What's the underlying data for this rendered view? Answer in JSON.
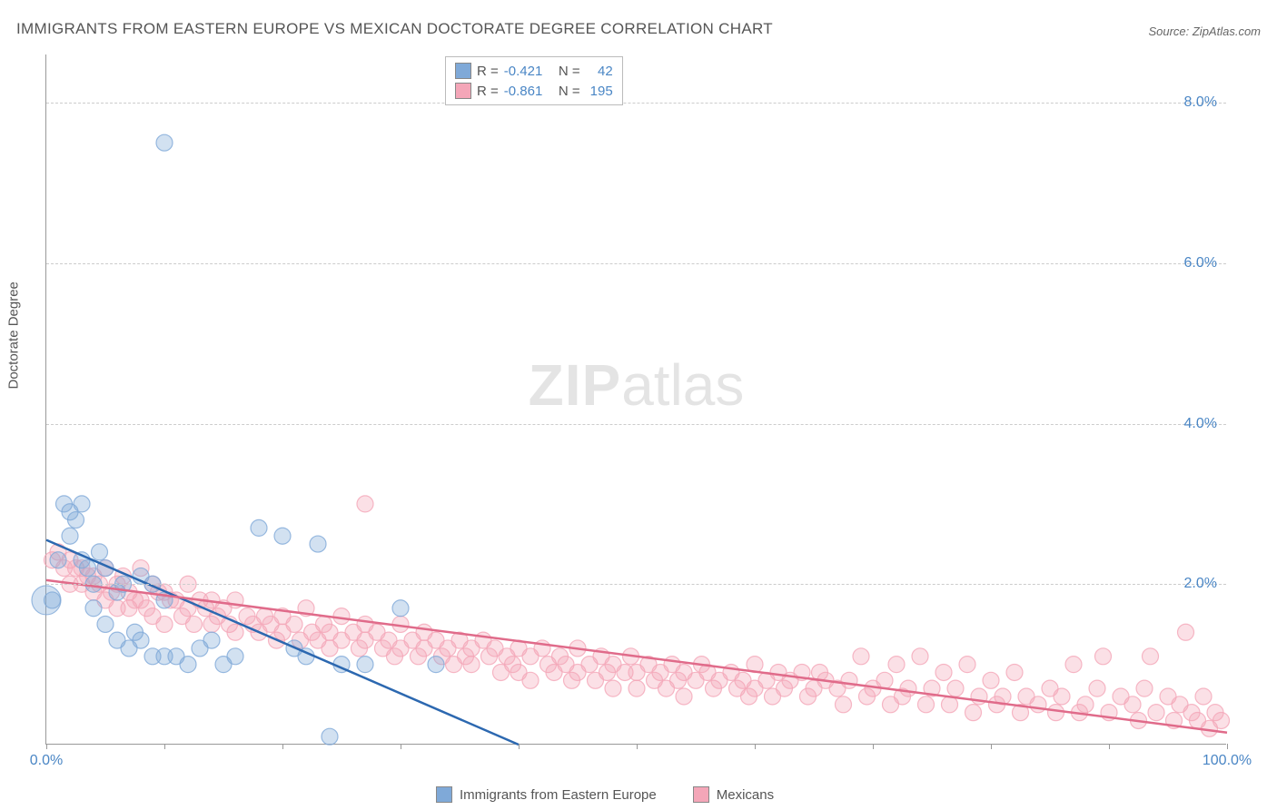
{
  "title": "IMMIGRANTS FROM EASTERN EUROPE VS MEXICAN DOCTORATE DEGREE CORRELATION CHART",
  "source": "Source: ZipAtlas.com",
  "watermark": {
    "bold": "ZIP",
    "rest": "atlas"
  },
  "y_axis_label": "Doctorate Degree",
  "chart": {
    "type": "scatter",
    "xlim": [
      0,
      100
    ],
    "ylim": [
      0,
      8.6
    ],
    "x_tick_positions": [
      0,
      10,
      20,
      30,
      40,
      50,
      60,
      70,
      80,
      90,
      100
    ],
    "x_tick_labels": {
      "0": "0.0%",
      "100": "100.0%"
    },
    "y_grid_positions": [
      2.0,
      4.0,
      6.0,
      8.0
    ],
    "y_tick_labels": {
      "2.0": "2.0%",
      "4.0": "4.0%",
      "6.0": "6.0%",
      "8.0": "8.0%"
    },
    "background_color": "#ffffff",
    "grid_color": "#cccccc",
    "axis_color": "#999999",
    "tick_label_color": "#4a86c5",
    "marker_radius": 9,
    "marker_fill_opacity": 0.35,
    "marker_stroke_opacity": 0.8,
    "line_width": 2.5
  },
  "series": {
    "a": {
      "label": "Immigrants from Eastern Europe",
      "color": "#7fa9d8",
      "line_color": "#2c68b0",
      "R": "-0.421",
      "N": "42",
      "regression": {
        "x1": 0,
        "y1": 2.55,
        "x2": 40,
        "y2": 0.0
      },
      "points": [
        [
          0.5,
          1.8
        ],
        [
          1,
          2.3
        ],
        [
          1.5,
          3.0
        ],
        [
          2,
          2.9
        ],
        [
          2,
          2.6
        ],
        [
          2.5,
          2.8
        ],
        [
          3,
          3.0
        ],
        [
          3,
          2.3
        ],
        [
          3.5,
          2.2
        ],
        [
          4,
          2.0
        ],
        [
          4,
          1.7
        ],
        [
          4.5,
          2.4
        ],
        [
          5,
          2.2
        ],
        [
          5,
          1.5
        ],
        [
          6,
          1.9
        ],
        [
          6,
          1.3
        ],
        [
          6.5,
          2.0
        ],
        [
          7,
          1.2
        ],
        [
          7.5,
          1.4
        ],
        [
          8,
          1.3
        ],
        [
          8,
          2.1
        ],
        [
          9,
          1.1
        ],
        [
          9,
          2.0
        ],
        [
          10,
          1.1
        ],
        [
          10,
          1.8
        ],
        [
          11,
          1.1
        ],
        [
          12,
          1.0
        ],
        [
          13,
          1.2
        ],
        [
          14,
          1.3
        ],
        [
          15,
          1.0
        ],
        [
          16,
          1.1
        ],
        [
          18,
          2.7
        ],
        [
          20,
          2.6
        ],
        [
          21,
          1.2
        ],
        [
          22,
          1.1
        ],
        [
          23,
          2.5
        ],
        [
          25,
          1.0
        ],
        [
          27,
          1.0
        ],
        [
          30,
          1.7
        ],
        [
          33,
          1.0
        ],
        [
          24,
          0.1
        ],
        [
          10,
          7.5
        ]
      ],
      "big_points": [
        [
          0,
          1.8,
          16
        ]
      ]
    },
    "b": {
      "label": "Mexicans",
      "color": "#f4a6b8",
      "line_color": "#e06b8a",
      "R": "-0.861",
      "N": "195",
      "regression": {
        "x1": 0,
        "y1": 2.05,
        "x2": 100,
        "y2": 0.15
      },
      "points": [
        [
          0.5,
          2.3
        ],
        [
          1,
          2.4
        ],
        [
          1.5,
          2.2
        ],
        [
          2,
          2.3
        ],
        [
          2,
          2.0
        ],
        [
          2.5,
          2.2
        ],
        [
          3,
          2.2
        ],
        [
          3,
          2.0
        ],
        [
          3.5,
          2.1
        ],
        [
          4,
          2.1
        ],
        [
          4,
          1.9
        ],
        [
          4.5,
          2.0
        ],
        [
          5,
          2.2
        ],
        [
          5,
          1.8
        ],
        [
          5.5,
          1.9
        ],
        [
          6,
          2.0
        ],
        [
          6,
          1.7
        ],
        [
          6.5,
          2.1
        ],
        [
          7,
          1.9
        ],
        [
          7,
          1.7
        ],
        [
          7.5,
          1.8
        ],
        [
          8,
          2.2
        ],
        [
          8,
          1.8
        ],
        [
          8.5,
          1.7
        ],
        [
          9,
          2.0
        ],
        [
          9,
          1.6
        ],
        [
          9.5,
          1.9
        ],
        [
          10,
          1.9
        ],
        [
          10,
          1.5
        ],
        [
          10.5,
          1.8
        ],
        [
          11,
          1.8
        ],
        [
          11.5,
          1.6
        ],
        [
          12,
          2.0
        ],
        [
          12,
          1.7
        ],
        [
          12.5,
          1.5
        ],
        [
          13,
          1.8
        ],
        [
          13.5,
          1.7
        ],
        [
          14,
          1.8
        ],
        [
          14,
          1.5
        ],
        [
          14.5,
          1.6
        ],
        [
          15,
          1.7
        ],
        [
          15.5,
          1.5
        ],
        [
          16,
          1.8
        ],
        [
          16,
          1.4
        ],
        [
          17,
          1.6
        ],
        [
          17.5,
          1.5
        ],
        [
          18,
          1.4
        ],
        [
          18.5,
          1.6
        ],
        [
          19,
          1.5
        ],
        [
          19.5,
          1.3
        ],
        [
          20,
          1.6
        ],
        [
          20,
          1.4
        ],
        [
          21,
          1.5
        ],
        [
          21.5,
          1.3
        ],
        [
          22,
          1.7
        ],
        [
          22.5,
          1.4
        ],
        [
          23,
          1.3
        ],
        [
          23.5,
          1.5
        ],
        [
          24,
          1.4
        ],
        [
          24,
          1.2
        ],
        [
          25,
          1.6
        ],
        [
          25,
          1.3
        ],
        [
          26,
          1.4
        ],
        [
          26.5,
          1.2
        ],
        [
          27,
          1.5
        ],
        [
          27,
          1.3
        ],
        [
          27,
          3.0
        ],
        [
          28,
          1.4
        ],
        [
          28.5,
          1.2
        ],
        [
          29,
          1.3
        ],
        [
          29.5,
          1.1
        ],
        [
          30,
          1.5
        ],
        [
          30,
          1.2
        ],
        [
          31,
          1.3
        ],
        [
          31.5,
          1.1
        ],
        [
          32,
          1.4
        ],
        [
          32,
          1.2
        ],
        [
          33,
          1.3
        ],
        [
          33.5,
          1.1
        ],
        [
          34,
          1.2
        ],
        [
          34.5,
          1.0
        ],
        [
          35,
          1.3
        ],
        [
          35.5,
          1.1
        ],
        [
          36,
          1.2
        ],
        [
          36,
          1.0
        ],
        [
          37,
          1.3
        ],
        [
          37.5,
          1.1
        ],
        [
          38,
          1.2
        ],
        [
          38.5,
          0.9
        ],
        [
          39,
          1.1
        ],
        [
          39.5,
          1.0
        ],
        [
          40,
          1.2
        ],
        [
          40,
          0.9
        ],
        [
          41,
          1.1
        ],
        [
          41,
          0.8
        ],
        [
          42,
          1.2
        ],
        [
          42.5,
          1.0
        ],
        [
          43,
          0.9
        ],
        [
          43.5,
          1.1
        ],
        [
          44,
          1.0
        ],
        [
          44.5,
          0.8
        ],
        [
          45,
          1.2
        ],
        [
          45,
          0.9
        ],
        [
          46,
          1.0
        ],
        [
          46.5,
          0.8
        ],
        [
          47,
          1.1
        ],
        [
          47.5,
          0.9
        ],
        [
          48,
          1.0
        ],
        [
          48,
          0.7
        ],
        [
          49,
          0.9
        ],
        [
          49.5,
          1.1
        ],
        [
          50,
          0.9
        ],
        [
          50,
          0.7
        ],
        [
          51,
          1.0
        ],
        [
          51.5,
          0.8
        ],
        [
          52,
          0.9
        ],
        [
          52.5,
          0.7
        ],
        [
          53,
          1.0
        ],
        [
          53.5,
          0.8
        ],
        [
          54,
          0.9
        ],
        [
          54,
          0.6
        ],
        [
          55,
          0.8
        ],
        [
          55.5,
          1.0
        ],
        [
          56,
          0.9
        ],
        [
          56.5,
          0.7
        ],
        [
          57,
          0.8
        ],
        [
          58,
          0.9
        ],
        [
          58.5,
          0.7
        ],
        [
          59,
          0.8
        ],
        [
          59.5,
          0.6
        ],
        [
          60,
          1.0
        ],
        [
          60,
          0.7
        ],
        [
          61,
          0.8
        ],
        [
          61.5,
          0.6
        ],
        [
          62,
          0.9
        ],
        [
          62.5,
          0.7
        ],
        [
          63,
          0.8
        ],
        [
          64,
          0.9
        ],
        [
          64.5,
          0.6
        ],
        [
          65,
          0.7
        ],
        [
          65.5,
          0.9
        ],
        [
          66,
          0.8
        ],
        [
          67,
          0.7
        ],
        [
          67.5,
          0.5
        ],
        [
          68,
          0.8
        ],
        [
          69,
          1.1
        ],
        [
          69.5,
          0.6
        ],
        [
          70,
          0.7
        ],
        [
          71,
          0.8
        ],
        [
          71.5,
          0.5
        ],
        [
          72,
          1.0
        ],
        [
          72.5,
          0.6
        ],
        [
          73,
          0.7
        ],
        [
          74,
          1.1
        ],
        [
          74.5,
          0.5
        ],
        [
          75,
          0.7
        ],
        [
          76,
          0.9
        ],
        [
          76.5,
          0.5
        ],
        [
          77,
          0.7
        ],
        [
          78,
          1.0
        ],
        [
          78.5,
          0.4
        ],
        [
          79,
          0.6
        ],
        [
          80,
          0.8
        ],
        [
          80.5,
          0.5
        ],
        [
          81,
          0.6
        ],
        [
          82,
          0.9
        ],
        [
          82.5,
          0.4
        ],
        [
          83,
          0.6
        ],
        [
          84,
          0.5
        ],
        [
          85,
          0.7
        ],
        [
          85.5,
          0.4
        ],
        [
          86,
          0.6
        ],
        [
          87,
          1.0
        ],
        [
          87.5,
          0.4
        ],
        [
          88,
          0.5
        ],
        [
          89,
          0.7
        ],
        [
          89.5,
          1.1
        ],
        [
          90,
          0.4
        ],
        [
          91,
          0.6
        ],
        [
          92,
          0.5
        ],
        [
          92.5,
          0.3
        ],
        [
          93,
          0.7
        ],
        [
          93.5,
          1.1
        ],
        [
          94,
          0.4
        ],
        [
          95,
          0.6
        ],
        [
          95.5,
          0.3
        ],
        [
          96,
          0.5
        ],
        [
          96.5,
          1.4
        ],
        [
          97,
          0.4
        ],
        [
          97.5,
          0.3
        ],
        [
          98,
          0.6
        ],
        [
          98.5,
          0.2
        ],
        [
          99,
          0.4
        ],
        [
          99.5,
          0.3
        ]
      ]
    }
  }
}
